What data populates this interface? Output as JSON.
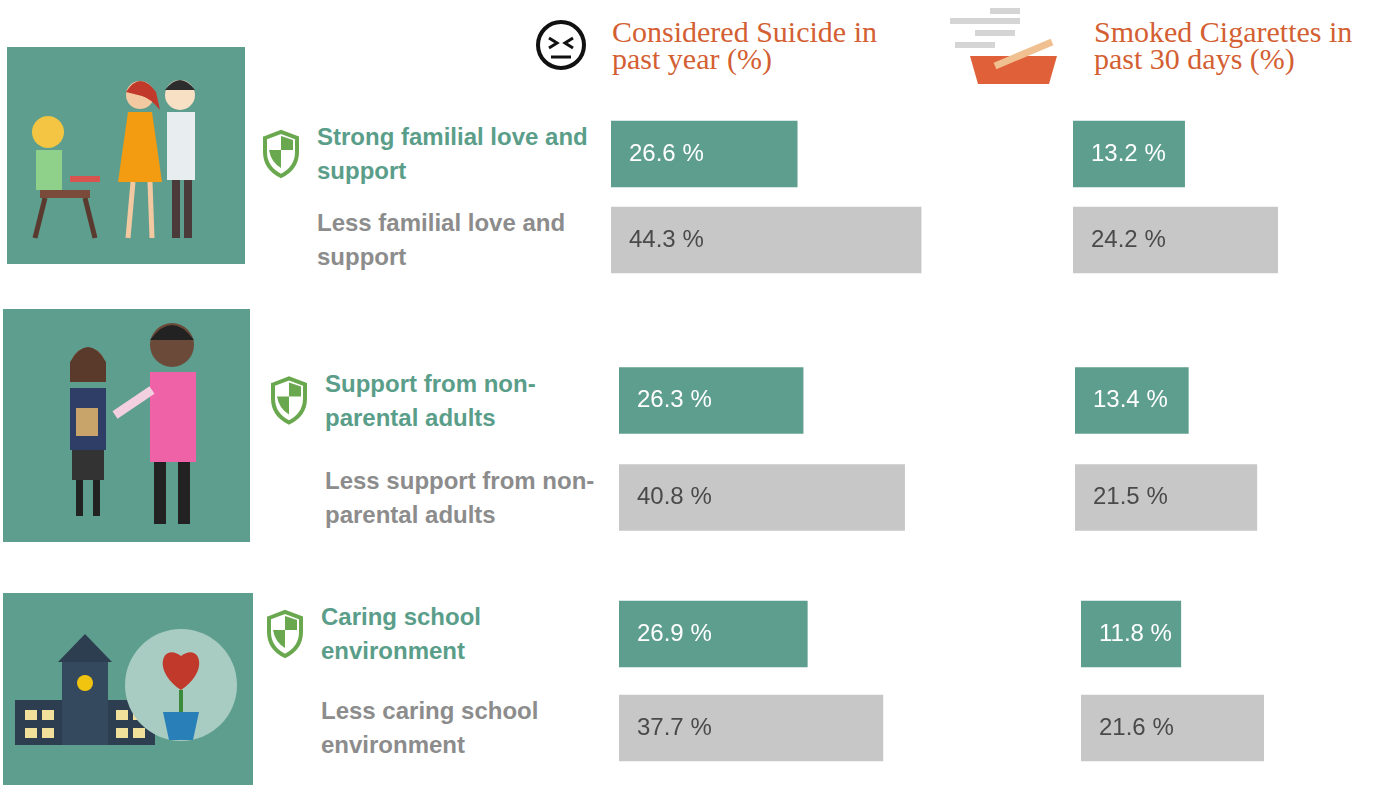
{
  "chart_data": [
    {
      "type": "bar",
      "orientation": "horizontal",
      "title": "Considered Suicide in past year (%)",
      "categories": [
        "Strong familial love and support",
        "Less familial love and support",
        "Support from non-parental adults",
        "Less support from non-parental adults",
        "Caring school environment",
        "Less caring school environment"
      ],
      "values": [
        26.6,
        44.3,
        26.3,
        40.8,
        26.9,
        37.7
      ],
      "value_labels": [
        "26.6 %",
        "44.3 %",
        "26.3 %",
        "40.8 %",
        "26.9 %",
        "37.7 %"
      ],
      "colors": [
        "#5e9e8e",
        "#c7c7c7",
        "#5e9e8e",
        "#c7c7c7",
        "#5e9e8e",
        "#c7c7c7"
      ],
      "xlim": [
        0,
        50
      ],
      "tick_labels": false,
      "data_labels": true,
      "grid": false
    },
    {
      "type": "bar",
      "orientation": "horizontal",
      "title": "Smoked Cigarettes in past 30 days (%)",
      "categories": [
        "Strong familial love and support",
        "Less familial love and support",
        "Support from non-parental adults",
        "Less support from non-parental adults",
        "Caring school environment",
        "Less caring school environment"
      ],
      "values": [
        13.2,
        24.2,
        13.4,
        21.5,
        11.8,
        21.6
      ],
      "value_labels": [
        "13.2 %",
        "24.2 %",
        "13.4 %",
        "21.5 %",
        "11.8 %",
        "21.6 %"
      ],
      "colors": [
        "#5e9e8e",
        "#c7c7c7",
        "#5e9e8e",
        "#c7c7c7",
        "#5e9e8e",
        "#c7c7c7"
      ],
      "xlim": [
        0,
        35
      ],
      "tick_labels": false,
      "data_labels": true,
      "grid": false
    }
  ]
}
